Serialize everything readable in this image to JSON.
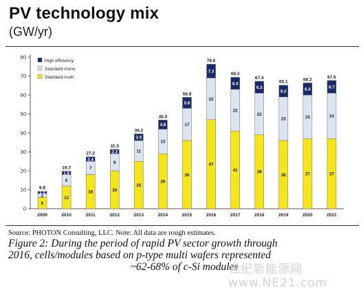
{
  "chart_data": {
    "type": "bar",
    "stacked": true,
    "title": "PV technology mix",
    "subtitle": "(GW/yr)",
    "categories": [
      "2009",
      "2010",
      "2011",
      "2012",
      "2013",
      "2014",
      "2015",
      "2016",
      "2017",
      "2018",
      "2019",
      "2020",
      "2021"
    ],
    "series": [
      {
        "name": "Standard multi",
        "color": "#f5e618",
        "values": [
          6,
          12,
          18,
          20,
          25,
          29,
          36,
          47,
          41,
          39,
          36,
          37,
          37
        ]
      },
      {
        "name": "Standard mono",
        "color": "#dce4f2",
        "values": [
          2,
          6,
          7,
          9,
          11,
          13,
          17,
          22,
          22,
          22,
          23,
          23,
          24
        ]
      },
      {
        "name": "High efficiency",
        "color": "#1a2a66",
        "values": [
          1.2,
          1.8,
          2.4,
          2.3,
          3.5,
          4.8,
          5.8,
          7.3,
          6.4,
          6.3,
          6.2,
          6.4,
          6.7
        ]
      }
    ],
    "value_labels": [
      [
        "6",
        "2",
        "1.2"
      ],
      [
        "12",
        "6",
        "1.8"
      ],
      [
        "18",
        "7",
        "2.4"
      ],
      [
        "20",
        "9",
        "2.3"
      ],
      [
        "25",
        "11",
        "3.5"
      ],
      [
        "29",
        "13",
        "4.8"
      ],
      [
        "36",
        "17",
        "5.8"
      ],
      [
        "47",
        "22",
        "7.3"
      ],
      [
        "41",
        "22",
        "6.4"
      ],
      [
        "39",
        "22",
        "6.3"
      ],
      [
        "36",
        "23",
        "6.2"
      ],
      [
        "37",
        "23",
        "6.4"
      ],
      [
        "37",
        "24",
        "6.7"
      ]
    ],
    "totals": [
      "8.8",
      "19.7",
      "27.2",
      "31.5",
      "39.2",
      "46.0",
      "58.8",
      "76.0",
      "69.3",
      "67.4",
      "65.1",
      "66.2",
      "67.6"
    ],
    "yticks": [
      "0",
      "10",
      "20",
      "30",
      "40",
      "50",
      "60",
      "70",
      "80"
    ],
    "ylim": [
      0,
      80
    ],
    "legend_position": "top-left",
    "grid": false
  },
  "source": "Source: PHOTON Consulting, LLC. Note: All data are rough estimates.",
  "caption": {
    "line1": "Figure 2: During the period of rapid PV sector growth through",
    "line2": "2016, cells/modules based on p-type multi wafers represented",
    "line3": "~62-68% of c-Si modules"
  },
  "watermark": "世纪新能源网 www.NE21.com"
}
